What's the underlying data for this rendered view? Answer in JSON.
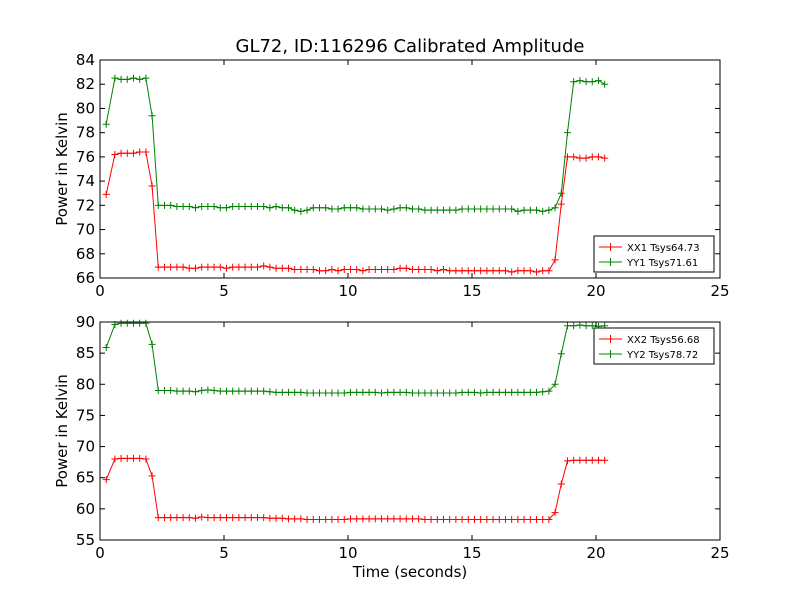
{
  "chart_data": {
    "title": "GL72, ID:116296 Calibrated Amplitude",
    "xlabel": "Time (seconds)",
    "colors": {
      "red": "#ff0000",
      "green": "#008000"
    },
    "x": [
      0.25,
      0.6,
      0.85,
      1.1,
      1.35,
      1.6,
      1.85,
      2.1,
      2.35,
      2.6,
      2.85,
      3.1,
      3.35,
      3.6,
      3.85,
      4.1,
      4.35,
      4.6,
      4.85,
      5.1,
      5.35,
      5.6,
      5.85,
      6.1,
      6.35,
      6.6,
      6.85,
      7.1,
      7.35,
      7.6,
      7.85,
      8.1,
      8.35,
      8.6,
      8.85,
      9.1,
      9.35,
      9.6,
      9.85,
      10.1,
      10.35,
      10.6,
      10.85,
      11.1,
      11.35,
      11.6,
      11.85,
      12.1,
      12.35,
      12.6,
      12.85,
      13.1,
      13.35,
      13.6,
      13.85,
      14.1,
      14.35,
      14.6,
      14.85,
      15.1,
      15.35,
      15.6,
      15.85,
      16.1,
      16.35,
      16.6,
      16.85,
      17.1,
      17.35,
      17.6,
      17.85,
      18.1,
      18.35,
      18.6,
      18.85,
      19.1,
      19.35,
      19.6,
      19.85,
      20.1,
      20.35
    ],
    "panels": [
      {
        "type": "line",
        "ylabel": "Power in Kelvin",
        "xlim": [
          0,
          25
        ],
        "ylim": [
          66,
          84
        ],
        "xticks": [
          "0",
          "5",
          "10",
          "15",
          "20",
          "25"
        ],
        "yticks": [
          "66",
          "68",
          "70",
          "72",
          "74",
          "76",
          "78",
          "80",
          "82",
          "84"
        ],
        "legend": "lower-right",
        "series": [
          {
            "name": "XX1 Tsys64.73",
            "color": "red",
            "values": [
              72.9,
              76.2,
              76.3,
              76.3,
              76.3,
              76.4,
              76.4,
              73.6,
              66.9,
              66.9,
              66.9,
              66.9,
              66.9,
              66.8,
              66.8,
              66.9,
              66.9,
              66.9,
              66.9,
              66.8,
              66.9,
              66.9,
              66.9,
              66.9,
              66.9,
              67.0,
              66.9,
              66.8,
              66.8,
              66.8,
              66.7,
              66.7,
              66.7,
              66.7,
              66.6,
              66.6,
              66.7,
              66.6,
              66.7,
              66.7,
              66.7,
              66.6,
              66.7,
              66.7,
              66.7,
              66.7,
              66.7,
              66.8,
              66.8,
              66.7,
              66.7,
              66.7,
              66.7,
              66.6,
              66.7,
              66.6,
              66.6,
              66.6,
              66.6,
              66.6,
              66.6,
              66.6,
              66.6,
              66.6,
              66.6,
              66.5,
              66.6,
              66.6,
              66.6,
              66.5,
              66.6,
              66.6,
              67.5,
              72.1,
              76.0,
              76.0,
              75.9,
              75.9,
              76.0,
              76.0,
              75.9
            ]
          },
          {
            "name": "YY1 Tsys71.61",
            "color": "green",
            "values": [
              78.7,
              82.5,
              82.4,
              82.4,
              82.5,
              82.4,
              82.5,
              79.4,
              72.0,
              72.0,
              72.0,
              71.9,
              71.9,
              71.9,
              71.8,
              71.9,
              71.9,
              71.9,
              71.8,
              71.8,
              71.9,
              71.9,
              71.9,
              71.9,
              71.9,
              71.9,
              71.8,
              71.9,
              71.8,
              71.8,
              71.6,
              71.5,
              71.6,
              71.8,
              71.8,
              71.8,
              71.7,
              71.7,
              71.8,
              71.8,
              71.8,
              71.7,
              71.7,
              71.7,
              71.7,
              71.6,
              71.7,
              71.8,
              71.8,
              71.7,
              71.7,
              71.6,
              71.6,
              71.6,
              71.6,
              71.6,
              71.6,
              71.7,
              71.7,
              71.7,
              71.7,
              71.7,
              71.7,
              71.7,
              71.7,
              71.7,
              71.5,
              71.6,
              71.6,
              71.6,
              71.5,
              71.6,
              71.8,
              73.0,
              78.0,
              82.2,
              82.3,
              82.2,
              82.2,
              82.3,
              82.0
            ]
          }
        ]
      },
      {
        "type": "line",
        "ylabel": "Power in Kelvin",
        "xlim": [
          0,
          25
        ],
        "ylim": [
          55,
          90
        ],
        "xticks": [
          "0",
          "5",
          "10",
          "15",
          "20",
          "25"
        ],
        "yticks": [
          "55",
          "60",
          "65",
          "70",
          "75",
          "80",
          "85",
          "90"
        ],
        "legend": "upper-right",
        "series": [
          {
            "name": "XX2 Tsys56.68",
            "color": "red",
            "values": [
              64.7,
              68.0,
              68.1,
              68.1,
              68.1,
              68.1,
              68.0,
              65.3,
              58.6,
              58.6,
              58.6,
              58.6,
              58.6,
              58.6,
              58.5,
              58.7,
              58.6,
              58.6,
              58.6,
              58.6,
              58.6,
              58.6,
              58.6,
              58.6,
              58.6,
              58.6,
              58.5,
              58.5,
              58.5,
              58.4,
              58.4,
              58.4,
              58.3,
              58.3,
              58.3,
              58.3,
              58.3,
              58.3,
              58.3,
              58.4,
              58.4,
              58.4,
              58.4,
              58.4,
              58.4,
              58.4,
              58.4,
              58.4,
              58.4,
              58.4,
              58.4,
              58.3,
              58.3,
              58.3,
              58.3,
              58.3,
              58.3,
              58.3,
              58.3,
              58.3,
              58.3,
              58.3,
              58.3,
              58.3,
              58.3,
              58.3,
              58.3,
              58.3,
              58.3,
              58.3,
              58.3,
              58.3,
              59.4,
              64.0,
              67.7,
              67.8,
              67.8,
              67.8,
              67.8,
              67.8,
              67.8
            ]
          },
          {
            "name": "YY2 Tsys78.72",
            "color": "green",
            "values": [
              85.9,
              89.6,
              89.8,
              89.8,
              89.8,
              89.8,
              89.8,
              86.4,
              79.0,
              79.0,
              79.0,
              78.9,
              78.9,
              78.9,
              78.8,
              79.0,
              79.1,
              79.0,
              78.9,
              78.9,
              78.9,
              78.9,
              78.9,
              78.9,
              78.9,
              78.9,
              78.8,
              78.7,
              78.7,
              78.7,
              78.7,
              78.7,
              78.6,
              78.6,
              78.6,
              78.6,
              78.6,
              78.6,
              78.6,
              78.7,
              78.7,
              78.7,
              78.7,
              78.7,
              78.6,
              78.7,
              78.7,
              78.7,
              78.7,
              78.6,
              78.6,
              78.6,
              78.6,
              78.6,
              78.6,
              78.6,
              78.6,
              78.7,
              78.7,
              78.7,
              78.6,
              78.7,
              78.7,
              78.7,
              78.7,
              78.7,
              78.7,
              78.7,
              78.7,
              78.7,
              78.8,
              78.9,
              80.0,
              84.9,
              89.4,
              89.4,
              89.5,
              89.4,
              89.4,
              89.3,
              89.4
            ]
          }
        ]
      }
    ]
  }
}
